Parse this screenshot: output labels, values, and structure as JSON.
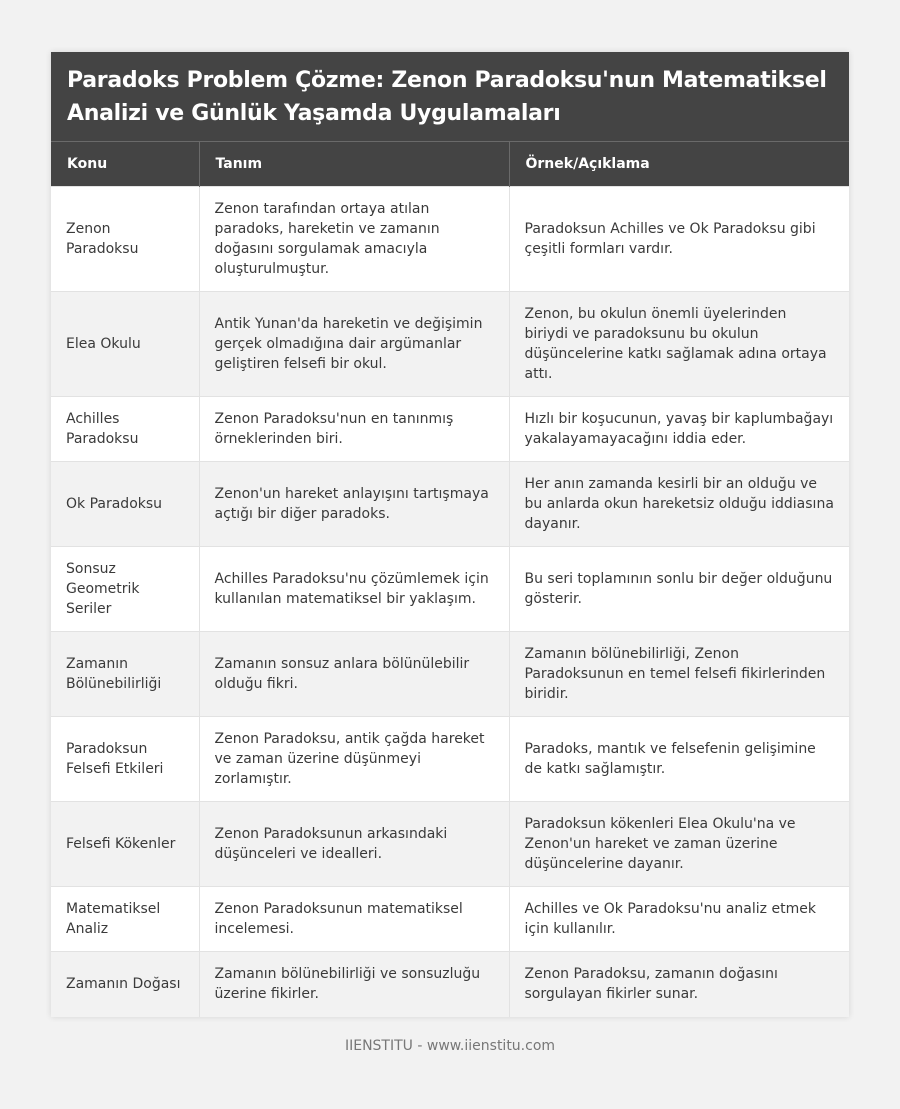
{
  "title": "Paradoks Problem Çözme: Zenon Paradoksu'nun Matematiksel Analizi ve Günlük Yaşamda Uygulamaları",
  "columns": [
    "Konu",
    "Tanım",
    "Örnek/Açıklama"
  ],
  "rows": [
    [
      "Zenon Paradoksu",
      "Zenon tarafından ortaya atılan paradoks, hareketin ve zamanın doğasını sorgulamak amacıyla oluşturulmuştur.",
      "Paradoksun Achilles ve Ok Paradoksu gibi çeşitli formları vardır."
    ],
    [
      "Elea Okulu",
      "Antik Yunan'da hareketin ve değişimin gerçek olmadığına dair argümanlar geliştiren felsefi bir okul.",
      "Zenon, bu okulun önemli üyelerinden biriydi ve paradoksunu bu okulun düşüncelerine katkı sağlamak adına ortaya attı."
    ],
    [
      "Achilles Paradoksu",
      "Zenon Paradoksu'nun en tanınmış örneklerinden biri.",
      "Hızlı bir koşucunun, yavaş bir kaplumbağayı yakalayamayacağını iddia eder."
    ],
    [
      "Ok Paradoksu",
      "Zenon'un hareket anlayışını tartışmaya açtığı bir diğer paradoks.",
      "Her anın zamanda kesirli bir an olduğu ve bu anlarda okun hareketsiz olduğu iddiasına dayanır."
    ],
    [
      "Sonsuz Geometrik Seriler",
      "Achilles Paradoksu'nu çözümlemek için kullanılan matematiksel bir yaklaşım.",
      "Bu seri toplamının sonlu bir değer olduğunu gösterir."
    ],
    [
      "Zamanın Bölünebilirliği",
      "Zamanın sonsuz anlara bölünülebilir olduğu fikri.",
      "Zamanın bölünebilirliği, Zenon Paradoksunun en temel felsefi fikirlerinden biridir."
    ],
    [
      "Paradoksun Felsefi Etkileri",
      "Zenon Paradoksu, antik çağda hareket ve zaman üzerine düşünmeyi zorlamıştır.",
      "Paradoks, mantık ve felsefenin gelişimine de katkı sağlamıştır."
    ],
    [
      "Felsefi Kökenler",
      "Zenon Paradoksunun arkasındaki düşünceleri ve idealleri.",
      "Paradoksun kökenleri Elea Okulu'na ve Zenon'un hareket ve zaman üzerine düşüncelerine dayanır."
    ],
    [
      "Matematiksel Analiz",
      "Zenon Paradoksunun matematiksel incelemesi.",
      "Achilles ve Ok Paradoksu'nu analiz etmek için kullanılır."
    ],
    [
      "Zamanın Doğası",
      "Zamanın bölünebilirliği ve sonsuzluğu üzerine fikirler.",
      "Zenon Paradoksu, zamanın doğasını sorgulayan fikirler sunar."
    ]
  ],
  "footer": "IIENSTITU - www.iienstitu.com",
  "colors": {
    "header_bg": "#444444",
    "alt_row_bg": "#f2f2f2",
    "page_bg": "#f2f2f2"
  }
}
